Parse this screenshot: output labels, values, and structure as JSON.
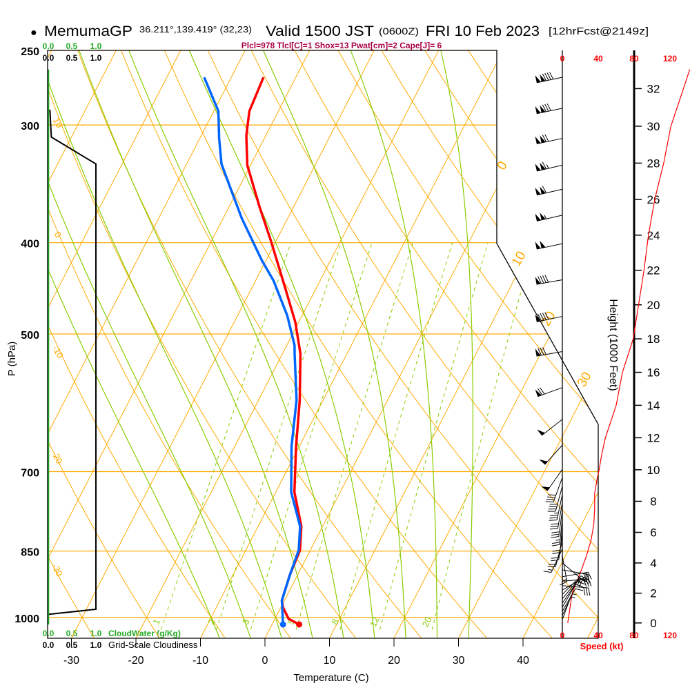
{
  "header": {
    "bullet": "●",
    "model": "MemumaGP",
    "location": "36.211°,139.419° (32,23)",
    "valid": "Valid 1500 JST",
    "utc": "(0600Z)",
    "date": "FRI 10 Feb 2023",
    "forecast": "[12hrFcst@2149z]",
    "indices": "Plcl=978 Tlcl[C]=1 Shox=13 Pwat[cm]=2 Cape[J]= 6"
  },
  "scales": {
    "cloudwater_ticks": [
      "0.0",
      "0.5",
      "1.0"
    ],
    "cloudwater_label": "CloudWater (g/Kg)",
    "cloudiness_ticks": [
      "0.0",
      "0.5",
      "1.0"
    ],
    "cloudiness_label": "Grid-Scale Cloudiness"
  },
  "colors": {
    "temperature": "#ff0000",
    "dewpoint": "#0066ff",
    "isotherm": "#ffaa00",
    "moist_adiabat": "#88cc00",
    "mixing_ratio": "#88cc00",
    "speed": "#ff0000",
    "indices": "#aa0044",
    "cloudwater": "#22aa22"
  },
  "chart_data": {
    "type": "skew-t",
    "ylabel": "P (hPa)",
    "xlabel": "Temperature (C)",
    "pressure_ticks": [
      250,
      300,
      400,
      500,
      700,
      850,
      1000
    ],
    "temperature_ticks": [
      -30,
      -20,
      -10,
      0,
      10,
      20,
      30,
      40
    ],
    "ylim": [
      250,
      1000
    ],
    "isotherm_interval": 10,
    "isotherm_labels": [
      "0",
      "10",
      "20",
      "30"
    ],
    "dry_adiabat_labels": [
      "10",
      "0",
      "-10",
      "-20",
      "-30"
    ],
    "mixing_ratio_labels": [
      "1",
      "2",
      "3",
      "5",
      "8",
      "12",
      "20"
    ],
    "mixing_ratio_values": [
      1,
      2,
      3,
      5,
      8,
      12,
      20
    ],
    "moist_adiabat_thetaw": [
      -10,
      -5,
      0,
      5,
      10,
      15,
      20,
      25,
      30
    ],
    "temperature_profile": [
      {
        "p": 267,
        "t": -45.0
      },
      {
        "p": 290,
        "t": -44.5
      },
      {
        "p": 308,
        "t": -43.0
      },
      {
        "p": 331,
        "t": -40.5
      },
      {
        "p": 367,
        "t": -35.2
      },
      {
        "p": 399,
        "t": -30.7
      },
      {
        "p": 447,
        "t": -24.8
      },
      {
        "p": 486,
        "t": -20.5
      },
      {
        "p": 514,
        "t": -18.1
      },
      {
        "p": 525,
        "t": -17.2
      },
      {
        "p": 588,
        "t": -13.6
      },
      {
        "p": 658,
        "t": -10.5
      },
      {
        "p": 736,
        "t": -7.1
      },
      {
        "p": 800,
        "t": -3.3
      },
      {
        "p": 848,
        "t": -1.6
      },
      {
        "p": 901,
        "t": -1.2
      },
      {
        "p": 959,
        "t": -0.4
      },
      {
        "p": 975,
        "t": 0.3
      },
      {
        "p": 1003,
        "t": 2.1
      },
      {
        "p": 1017,
        "t": 4.2
      }
    ],
    "dewpoint_profile": [
      {
        "p": 267,
        "t": -54.2
      },
      {
        "p": 290,
        "t": -49.3
      },
      {
        "p": 310,
        "t": -47.0
      },
      {
        "p": 330,
        "t": -44.6
      },
      {
        "p": 350,
        "t": -41.3
      },
      {
        "p": 377,
        "t": -37.1
      },
      {
        "p": 418,
        "t": -30.6
      },
      {
        "p": 439,
        "t": -27.2
      },
      {
        "p": 478,
        "t": -22.3
      },
      {
        "p": 514,
        "t": -18.8
      },
      {
        "p": 525,
        "t": -18.1
      },
      {
        "p": 588,
        "t": -14.1
      },
      {
        "p": 658,
        "t": -11.2
      },
      {
        "p": 736,
        "t": -7.6
      },
      {
        "p": 800,
        "t": -3.5
      },
      {
        "p": 848,
        "t": -1.8
      },
      {
        "p": 901,
        "t": -1.2
      },
      {
        "p": 959,
        "t": -0.4
      },
      {
        "p": 1017,
        "t": 1.7
      }
    ],
    "cloudiness_profile": [
      {
        "p": 289,
        "v": 0.02
      },
      {
        "p": 309,
        "v": 0.05
      },
      {
        "p": 330,
        "v": 1.0
      },
      {
        "p": 980,
        "v": 1.0
      },
      {
        "p": 992,
        "v": 0.0
      }
    ],
    "cloudwater_profile": [
      {
        "p": 262,
        "v": 0.0
      },
      {
        "p": 1017,
        "v": 0.0
      }
    ],
    "wind": {
      "speed_ticks": [
        "0",
        "40",
        "80",
        "120"
      ],
      "speed_label": "Speed (kt)",
      "speed_max": 120,
      "barbs": [
        {
          "p": 267,
          "dir": 258,
          "kt": 140
        },
        {
          "p": 288,
          "dir": 258,
          "kt": 130
        },
        {
          "p": 310,
          "dir": 258,
          "kt": 120
        },
        {
          "p": 331,
          "dir": 257,
          "kt": 115
        },
        {
          "p": 351,
          "dir": 257,
          "kt": 110
        },
        {
          "p": 374,
          "dir": 257,
          "kt": 105
        },
        {
          "p": 401,
          "dir": 258,
          "kt": 100
        },
        {
          "p": 438,
          "dir": 260,
          "kt": 90
        },
        {
          "p": 479,
          "dir": 258,
          "kt": 90
        },
        {
          "p": 522,
          "dir": 260,
          "kt": 80
        },
        {
          "p": 570,
          "dir": 250,
          "kt": 70
        },
        {
          "p": 616,
          "dir": 232,
          "kt": 50
        },
        {
          "p": 656,
          "dir": 222,
          "kt": 50
        },
        {
          "p": 696,
          "dir": 215,
          "kt": 50
        },
        {
          "p": 710,
          "dir": 200,
          "kt": 40
        },
        {
          "p": 725,
          "dir": 195,
          "kt": 38
        },
        {
          "p": 740,
          "dir": 192,
          "kt": 35
        },
        {
          "p": 755,
          "dir": 190,
          "kt": 30
        },
        {
          "p": 770,
          "dir": 188,
          "kt": 28
        },
        {
          "p": 785,
          "dir": 186,
          "kt": 25
        },
        {
          "p": 800,
          "dir": 185,
          "kt": 22
        },
        {
          "p": 815,
          "dir": 188,
          "kt": 20
        },
        {
          "p": 830,
          "dir": 195,
          "kt": 18
        },
        {
          "p": 845,
          "dir": 205,
          "kt": 15
        },
        {
          "p": 860,
          "dir": 170,
          "kt": 15
        },
        {
          "p": 875,
          "dir": 130,
          "kt": 18
        },
        {
          "p": 890,
          "dir": 100,
          "kt": 20
        },
        {
          "p": 905,
          "dir": 80,
          "kt": 25
        },
        {
          "p": 915,
          "dir": 85,
          "kt": 30
        },
        {
          "p": 925,
          "dir": 95,
          "kt": 28
        },
        {
          "p": 935,
          "dir": 60,
          "kt": 22
        },
        {
          "p": 945,
          "dir": 45,
          "kt": 18
        },
        {
          "p": 955,
          "dir": 40,
          "kt": 15
        },
        {
          "p": 965,
          "dir": 35,
          "kt": 12
        },
        {
          "p": 975,
          "dir": 30,
          "kt": 10
        },
        {
          "p": 985,
          "dir": 30,
          "kt": 8
        },
        {
          "p": 995,
          "dir": 25,
          "kt": 6
        },
        {
          "p": 1005,
          "dir": 20,
          "kt": 5
        }
      ],
      "speed_profile": [
        {
          "h": 0,
          "kt": 6
        },
        {
          "h": 2,
          "kt": 11
        },
        {
          "h": 3.5,
          "kt": 21
        },
        {
          "h": 4.5,
          "kt": 27
        },
        {
          "h": 5.5,
          "kt": 32
        },
        {
          "h": 6.5,
          "kt": 35
        },
        {
          "h": 7.5,
          "kt": 36
        },
        {
          "h": 8.5,
          "kt": 36
        },
        {
          "h": 9.5,
          "kt": 39
        },
        {
          "h": 10,
          "kt": 41
        },
        {
          "h": 11,
          "kt": 44
        },
        {
          "h": 12,
          "kt": 48
        },
        {
          "h": 13,
          "kt": 54
        },
        {
          "h": 14,
          "kt": 60
        },
        {
          "h": 16,
          "kt": 67
        },
        {
          "h": 18,
          "kt": 79
        },
        {
          "h": 20,
          "kt": 85
        },
        {
          "h": 22,
          "kt": 91
        },
        {
          "h": 24,
          "kt": 96
        },
        {
          "h": 26,
          "kt": 103
        },
        {
          "h": 28,
          "kt": 113
        },
        {
          "h": 30,
          "kt": 121
        },
        {
          "h": 32,
          "kt": 135
        },
        {
          "h": 33,
          "kt": 142
        }
      ]
    },
    "height": {
      "label": "Height (1000 Feet)",
      "ticks": [
        0,
        2,
        4,
        6,
        8,
        10,
        12,
        14,
        16,
        18,
        20,
        22,
        24,
        26,
        28,
        30,
        32
      ]
    }
  }
}
